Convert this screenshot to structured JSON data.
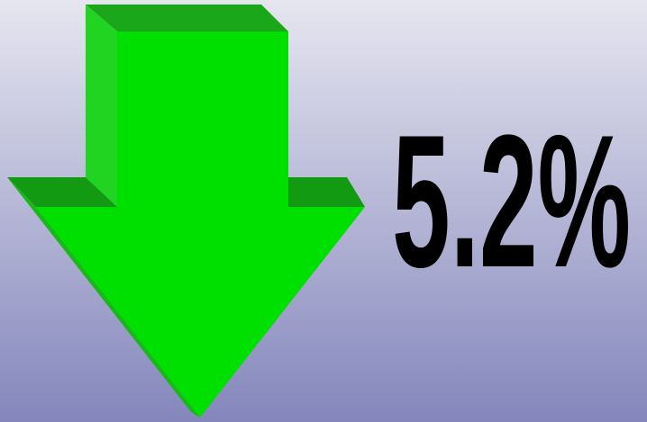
{
  "label": "5.2%"
}
